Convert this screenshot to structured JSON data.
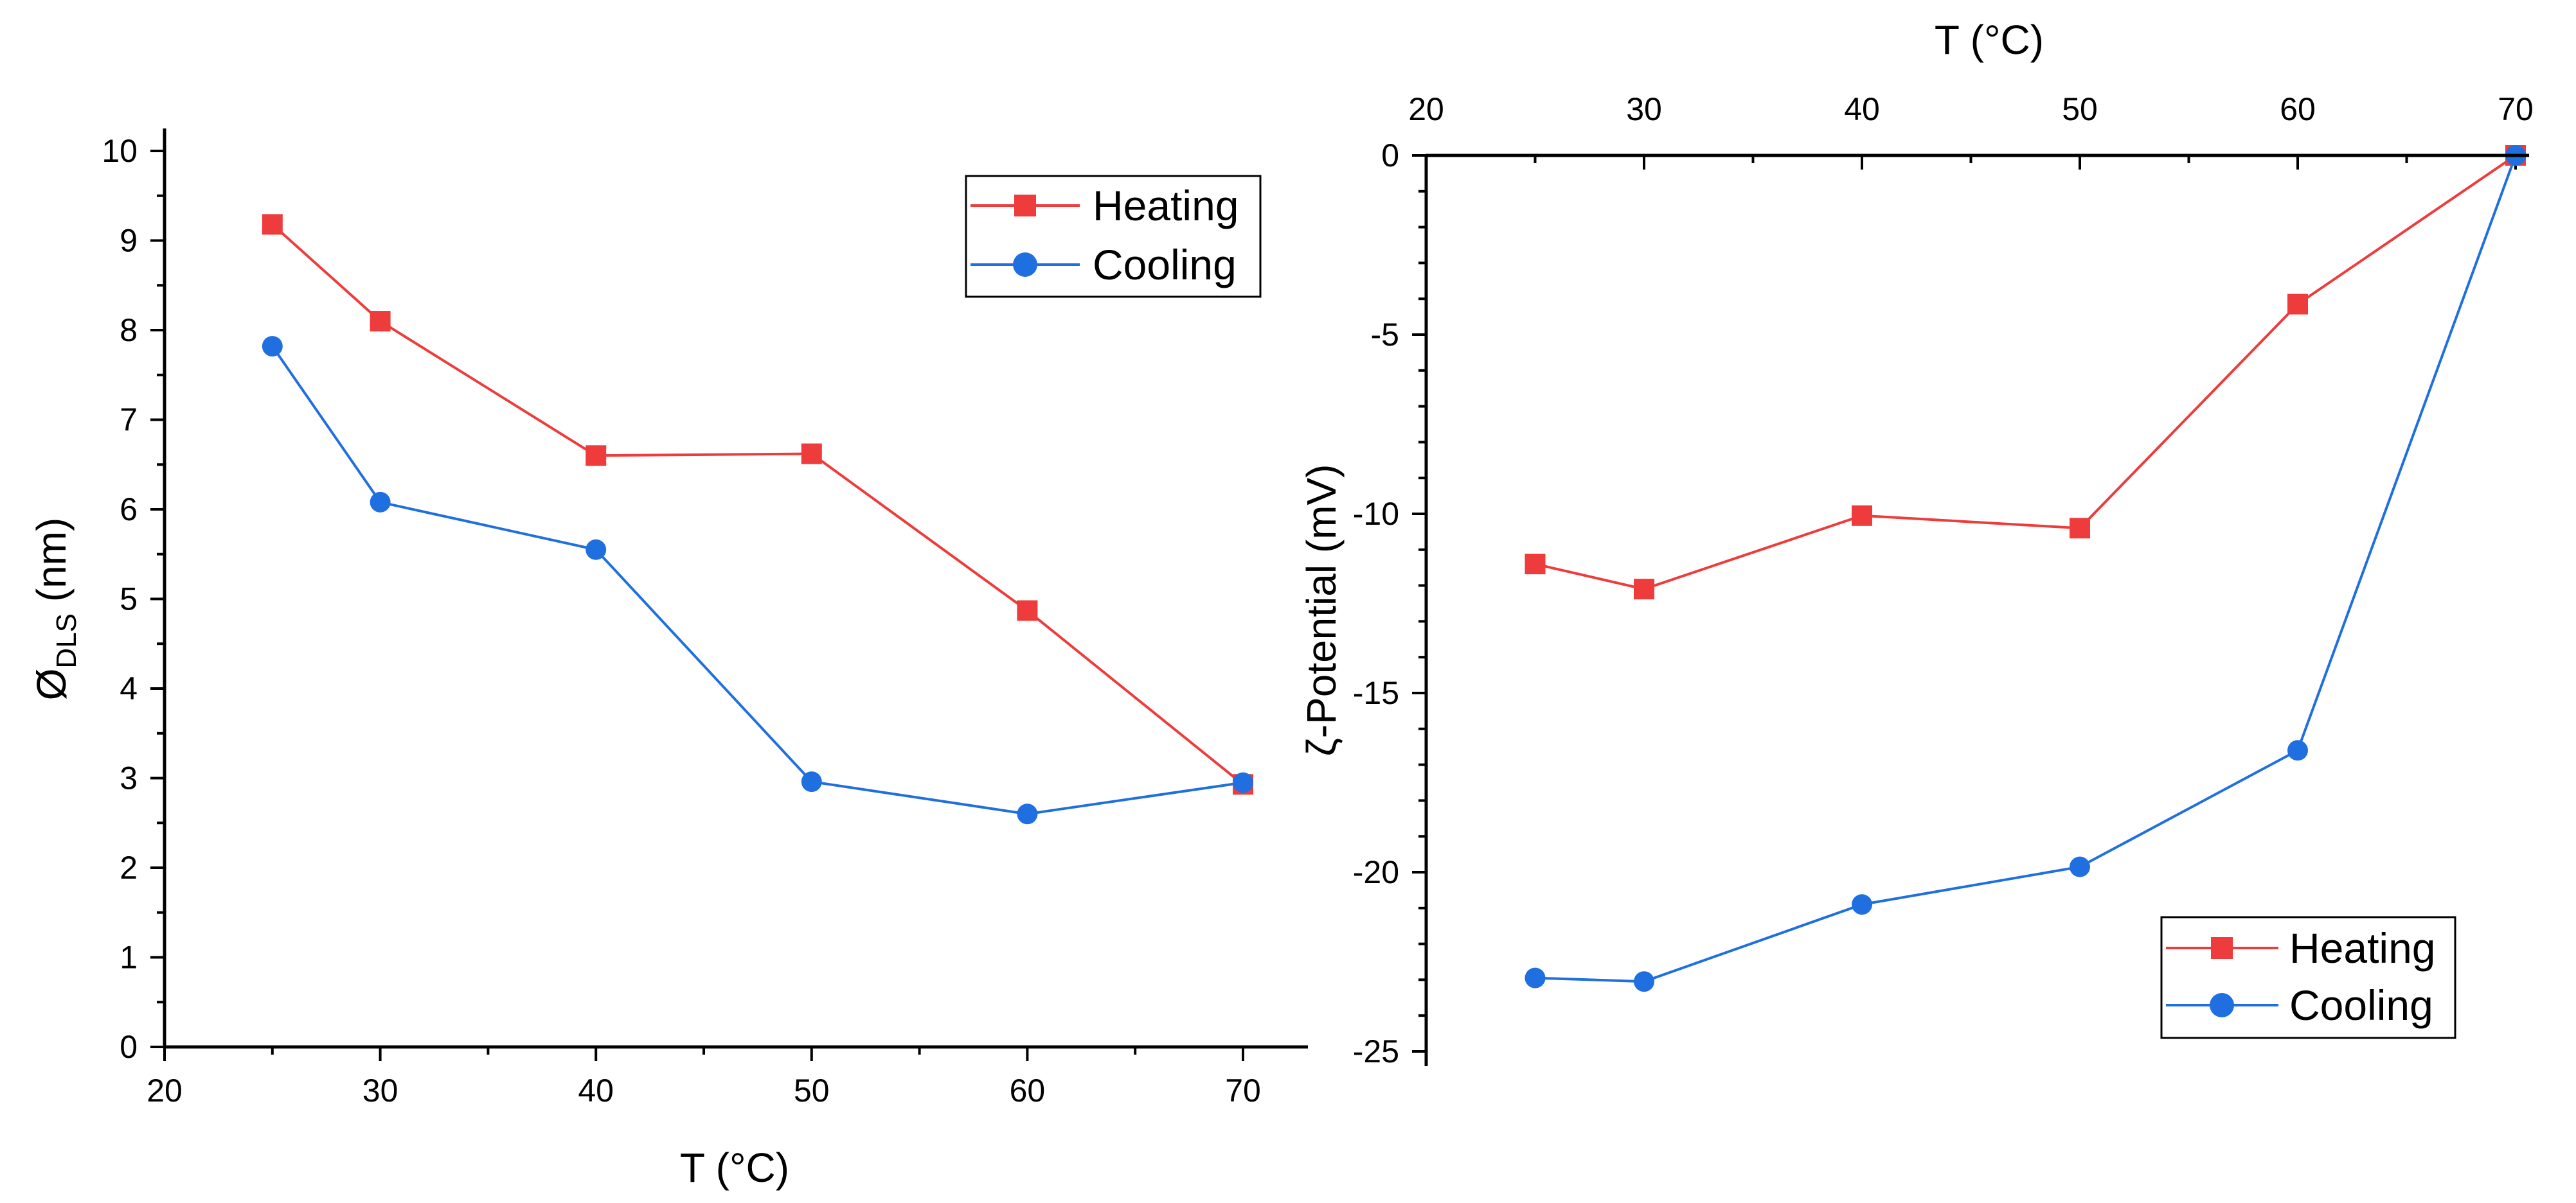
{
  "chart_data": [
    {
      "type": "line",
      "xlabel": "T (°C)",
      "ylabel_main": "Ø",
      "ylabel_sub": "DLS",
      "ylabel_unit": " (nm)",
      "xlim": [
        20,
        73
      ],
      "ylim": [
        0,
        10.3
      ],
      "xticks": [
        20,
        30,
        40,
        50,
        60,
        70
      ],
      "yticks": [
        0,
        1,
        2,
        3,
        4,
        5,
        6,
        7,
        8,
        9,
        10
      ],
      "x": [
        25,
        30,
        40,
        50,
        60,
        70
      ],
      "series": [
        {
          "name": "Heating",
          "color": "#ee3b3b",
          "marker": "square",
          "values": [
            9.18,
            8.1,
            6.6,
            6.62,
            4.87,
            2.93
          ]
        },
        {
          "name": "Cooling",
          "color": "#1f6fe0",
          "marker": "circle",
          "values": [
            7.82,
            6.08,
            5.55,
            2.96,
            2.6,
            2.95
          ]
        }
      ],
      "legend": {
        "position": "top-right",
        "entries": [
          "Heating",
          "Cooling"
        ]
      }
    },
    {
      "type": "line",
      "xlabel": "T (°C)",
      "xlabel_position": "top",
      "ylabel": "ζ-Potential (mV)",
      "xlim": [
        20,
        70.6
      ],
      "ylim": [
        -25.3,
        0
      ],
      "xticks": [
        20,
        30,
        40,
        50,
        60,
        70
      ],
      "yticks": [
        0,
        -5,
        -10,
        -15,
        -20,
        -25
      ],
      "x": [
        25,
        30,
        40,
        50,
        60,
        70
      ],
      "series": [
        {
          "name": "Heating",
          "color": "#ee3b3b",
          "marker": "square",
          "values": [
            -11.4,
            -12.1,
            -10.05,
            -10.4,
            -4.15,
            0
          ]
        },
        {
          "name": "Cooling",
          "color": "#1f6fe0",
          "marker": "circle",
          "values": [
            -22.95,
            -23.05,
            -20.9,
            -19.85,
            -16.6,
            0
          ]
        }
      ],
      "legend": {
        "position": "bottom-right",
        "entries": [
          "Heating",
          "Cooling"
        ]
      }
    }
  ]
}
